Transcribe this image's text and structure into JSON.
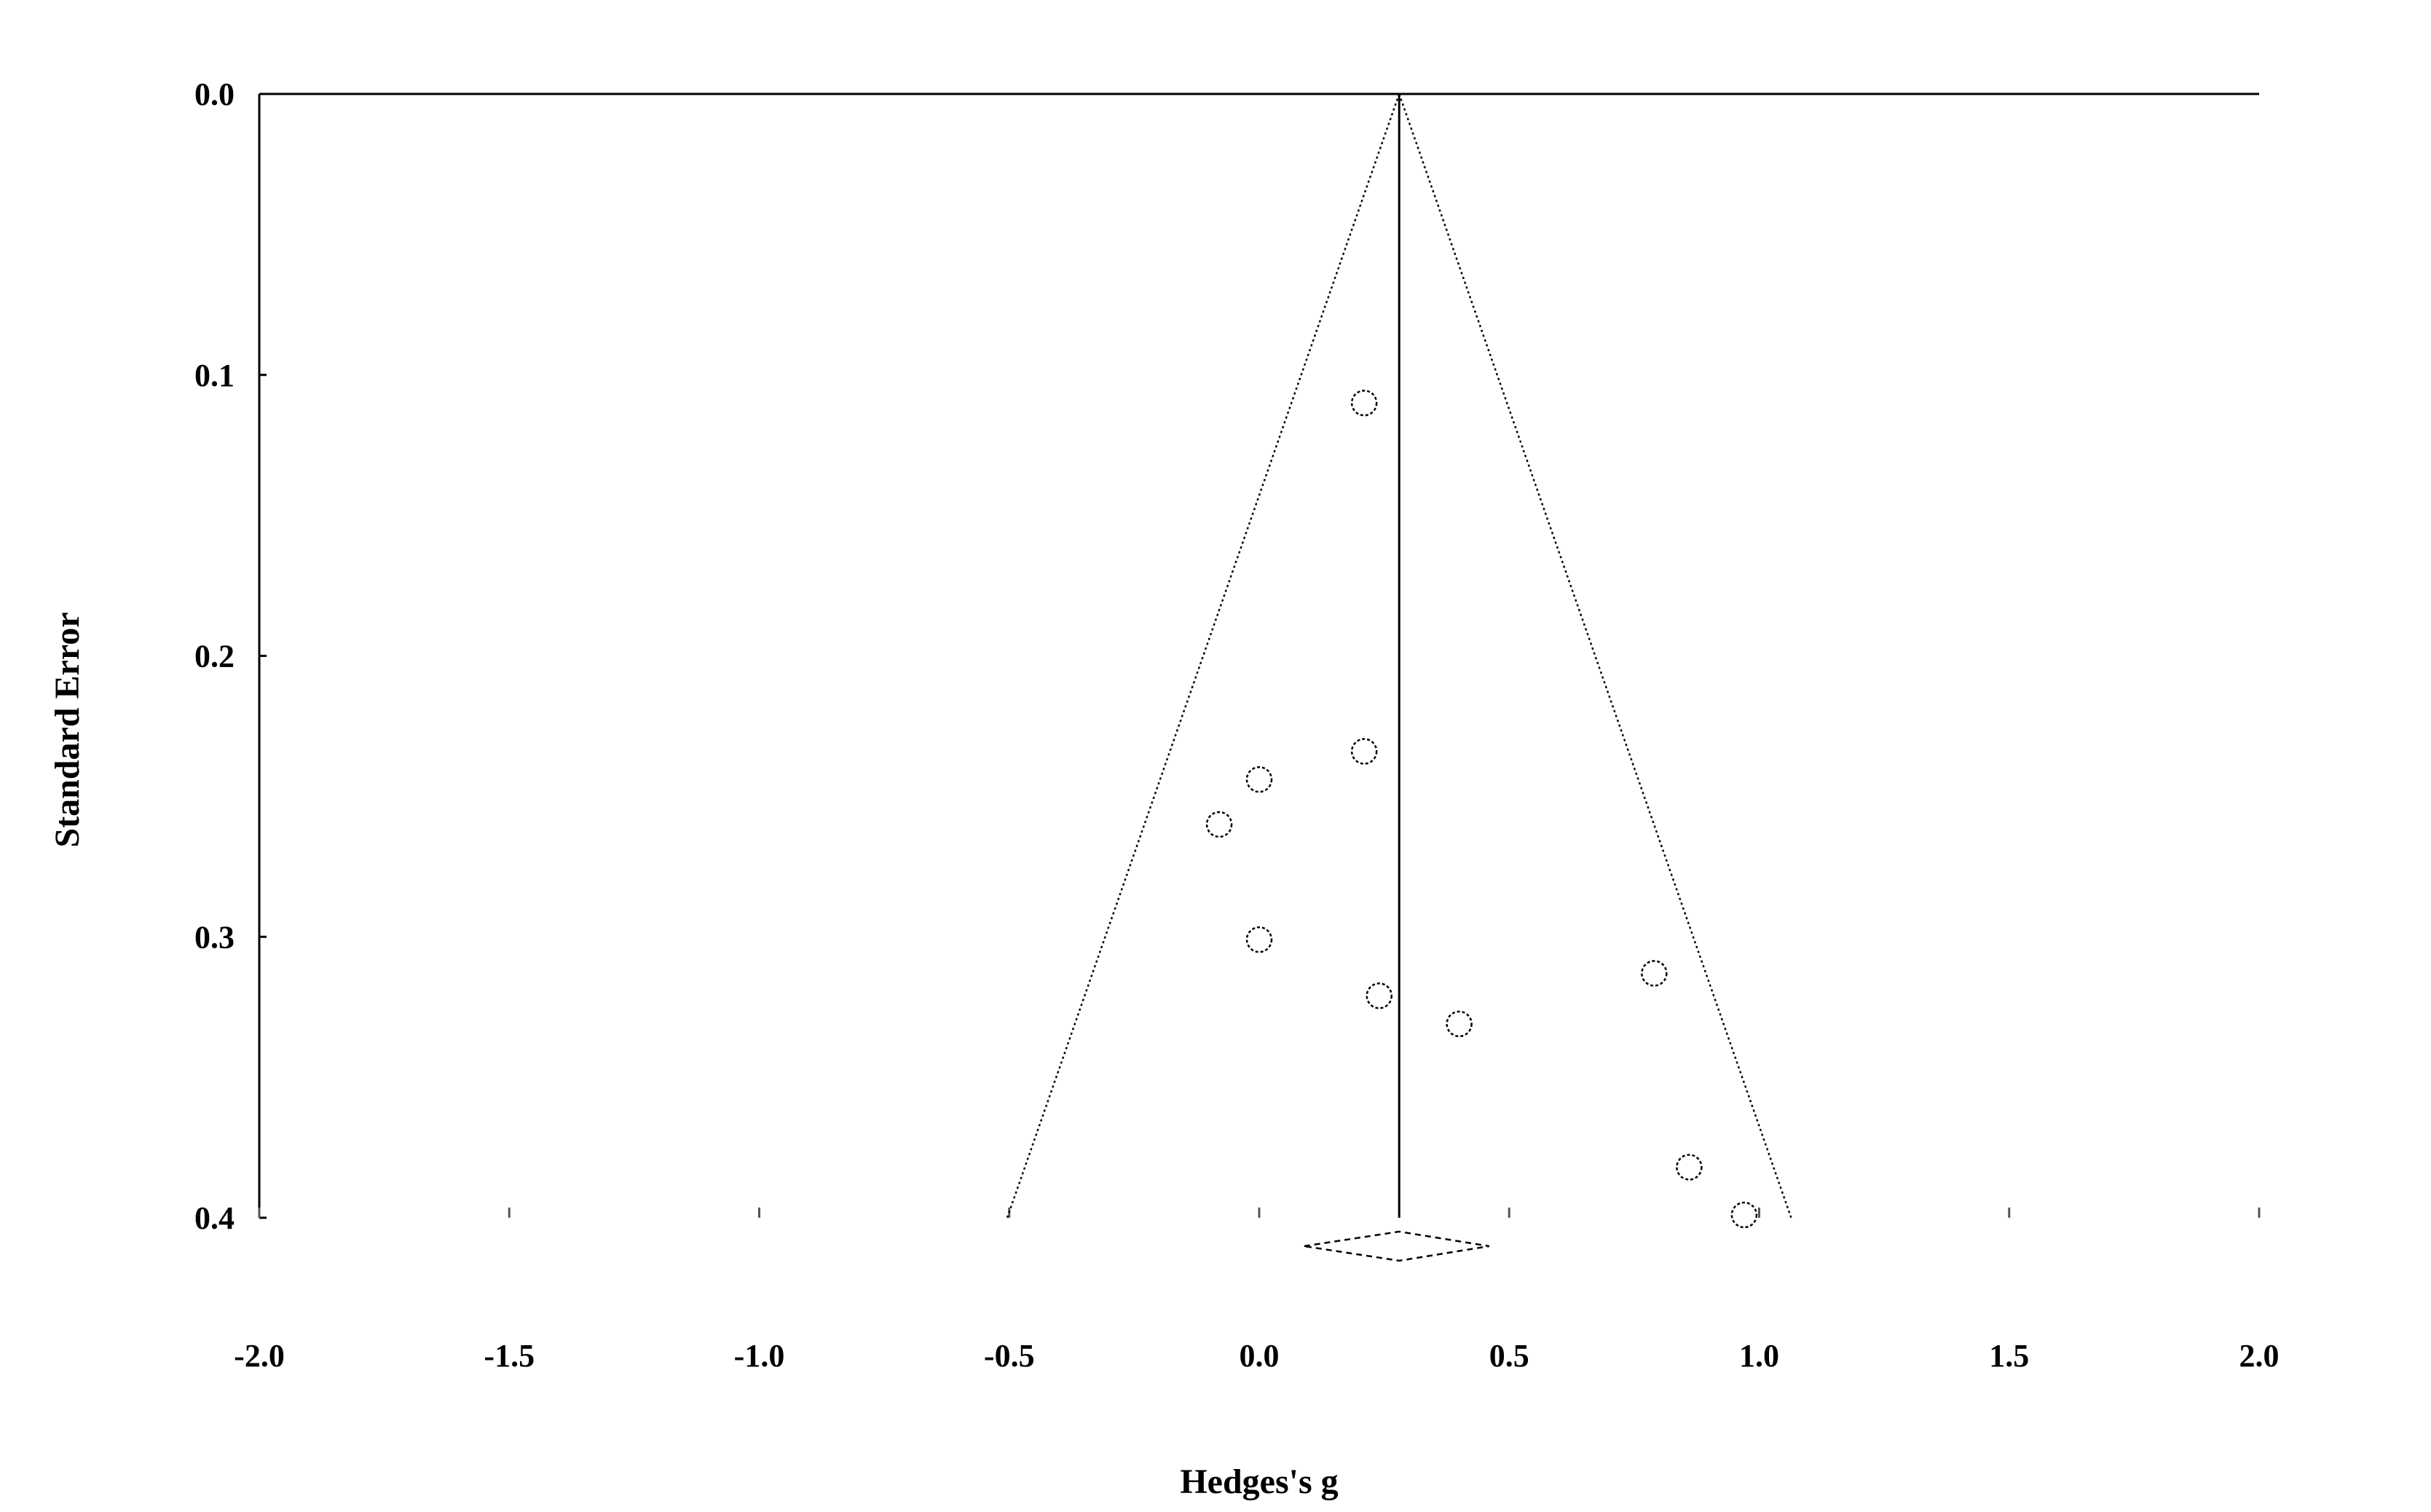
{
  "chart_data": {
    "type": "scatter",
    "subtype": "funnel-plot",
    "title": "",
    "xlabel": "Hedges's g",
    "ylabel": "Standard Error",
    "xlim": [
      -2.0,
      2.0
    ],
    "ylim": [
      0.0,
      0.4
    ],
    "y_inverted": true,
    "x_ticks": [
      "-2.0",
      "-1.5",
      "-1.0",
      "-0.5",
      "0.0",
      "0.5",
      "1.0",
      "1.5",
      "2.0"
    ],
    "y_ticks": [
      "0.0",
      "0.1",
      "0.2",
      "0.3",
      "0.4"
    ],
    "grid": false,
    "legend": "none",
    "pooled_effect": 0.28,
    "funnel_multiplier": 1.96,
    "pooled_ci": [
      0.09,
      0.46
    ],
    "marker": "open-circle",
    "points": [
      {
        "x": 0.21,
        "y": 0.11
      },
      {
        "x": 0.21,
        "y": 0.234
      },
      {
        "x": 0.0,
        "y": 0.244
      },
      {
        "x": -0.08,
        "y": 0.26
      },
      {
        "x": 0.0,
        "y": 0.301
      },
      {
        "x": 0.24,
        "y": 0.321
      },
      {
        "x": 0.4,
        "y": 0.331
      },
      {
        "x": 0.79,
        "y": 0.313
      },
      {
        "x": 0.86,
        "y": 0.382
      },
      {
        "x": 0.97,
        "y": 0.399
      }
    ],
    "colors": {
      "line": "#000000",
      "marker_stroke": "#000000",
      "background": "#ffffff"
    }
  }
}
